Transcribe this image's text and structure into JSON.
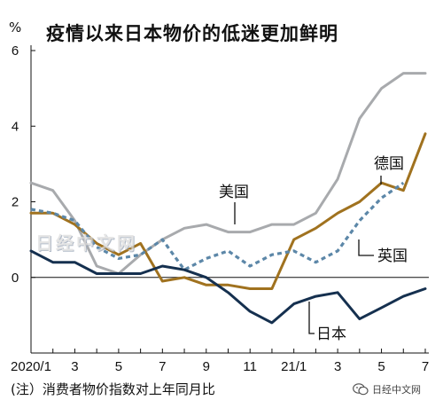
{
  "header": {
    "title": "疫情以来日本物价的低迷更加鲜明",
    "unit": "%"
  },
  "footer": {
    "note": "(注）消费者物价指数对上年同月比",
    "wechat": "日经中文网"
  },
  "watermark": "日经中文网",
  "chart_data": {
    "type": "line",
    "title": "疫情以来日本物价的低迷更加鲜明",
    "ylabel": "%",
    "ylim": [
      -2,
      6
    ],
    "yticks": [
      0,
      2,
      4,
      6
    ],
    "x": [
      "2020/1",
      "2",
      "3",
      "4",
      "5",
      "6",
      "7",
      "8",
      "9",
      "10",
      "11",
      "12",
      "21/1",
      "2",
      "3",
      "4",
      "5",
      "6",
      "7"
    ],
    "xtick_labels": [
      {
        "i": 0,
        "label": "2020/1"
      },
      {
        "i": 2,
        "label": "3"
      },
      {
        "i": 4,
        "label": "5"
      },
      {
        "i": 6,
        "label": "7"
      },
      {
        "i": 8,
        "label": "9"
      },
      {
        "i": 10,
        "label": "11"
      },
      {
        "i": 12,
        "label": "21/1"
      },
      {
        "i": 14,
        "label": "3"
      },
      {
        "i": 16,
        "label": "5"
      },
      {
        "i": 18,
        "label": "7"
      }
    ],
    "series": [
      {
        "name": "美国",
        "color": "#a8aaad",
        "dashed": false,
        "values": [
          2.5,
          2.3,
          1.5,
          0.3,
          0.1,
          0.6,
          1.0,
          1.3,
          1.4,
          1.2,
          1.2,
          1.4,
          1.4,
          1.7,
          2.6,
          4.2,
          5.0,
          5.4,
          5.4
        ]
      },
      {
        "name": "德国",
        "color": "#a0721f",
        "dashed": false,
        "values": [
          1.7,
          1.7,
          1.4,
          0.9,
          0.6,
          0.9,
          -0.1,
          0.0,
          -0.2,
          -0.2,
          -0.3,
          -0.3,
          1.0,
          1.3,
          1.7,
          2.0,
          2.5,
          2.3,
          3.8
        ]
      },
      {
        "name": "英国",
        "color": "#5c87a8",
        "dashed": true,
        "values": [
          1.8,
          1.7,
          1.5,
          0.8,
          0.5,
          0.6,
          1.0,
          0.2,
          0.5,
          0.7,
          0.3,
          0.6,
          0.7,
          0.4,
          0.7,
          1.5,
          2.1,
          2.5,
          null
        ]
      },
      {
        "name": "日本",
        "color": "#15304f",
        "dashed": false,
        "values": [
          0.7,
          0.4,
          0.4,
          0.1,
          0.1,
          0.1,
          0.3,
          0.2,
          0.0,
          -0.4,
          -0.9,
          -1.2,
          -0.7,
          -0.5,
          -0.4,
          -1.1,
          -0.8,
          -0.5,
          -0.3
        ]
      }
    ]
  }
}
